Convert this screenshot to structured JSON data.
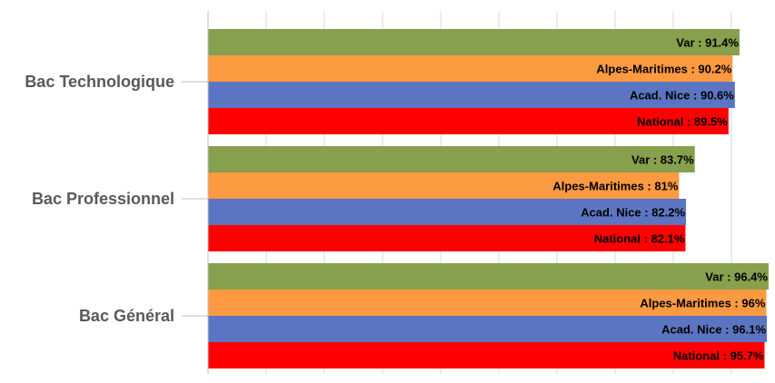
{
  "chart_data": {
    "type": "bar",
    "orientation": "horizontal",
    "categories": [
      "Bac Technologique",
      "Bac Professionnel",
      "Bac Général"
    ],
    "series": [
      {
        "name": "Var",
        "color": "#86a04d",
        "values": [
          91.4,
          83.7,
          96.4
        ],
        "labels": [
          "Var : 91.4%",
          "Var : 83.7%",
          "Var : 96.4%"
        ]
      },
      {
        "name": "Alpes-Maritimes",
        "color": "#fb9a41",
        "values": [
          90.2,
          81,
          96
        ],
        "labels": [
          "Alpes-Maritimes : 90.2%",
          "Alpes-Maritimes : 81%",
          "Alpes-Maritimes : 96%"
        ]
      },
      {
        "name": "Acad. Nice",
        "color": "#5b75c2",
        "values": [
          90.6,
          82.2,
          96.1
        ],
        "labels": [
          "Acad. Nice : 90.6%",
          "Acad. Nice : 82.2%",
          "Acad. Nice : 96.1%"
        ]
      },
      {
        "name": "National",
        "color": "#ff0000",
        "values": [
          89.5,
          82.1,
          95.7
        ],
        "labels": [
          "National : 89.5%",
          "National : 82.1%",
          "National : 95.7%"
        ]
      }
    ],
    "xlim": [
      0,
      100
    ],
    "grid": true,
    "legend": "none"
  }
}
